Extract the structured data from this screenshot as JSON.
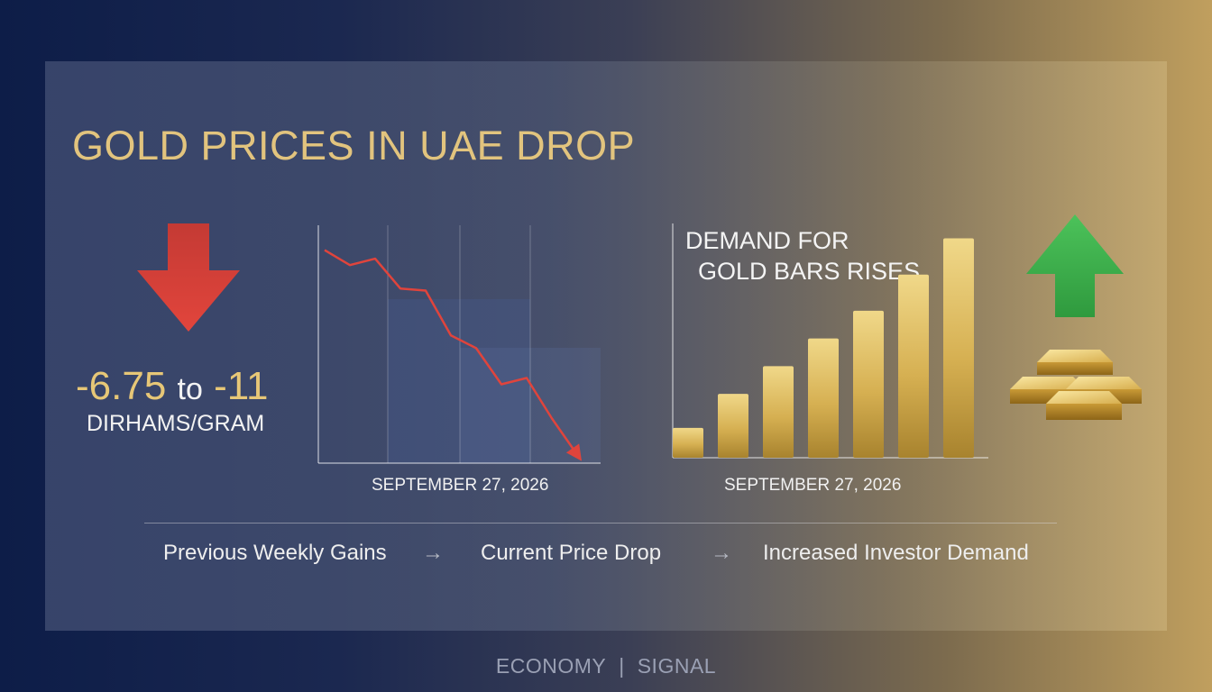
{
  "headline": "GOLD PRICES IN UAE DROP",
  "price_drop": {
    "from": "-6.75",
    "to_word": "to",
    "to": "-11",
    "unit": "DIRHAMS/GRAM"
  },
  "demand_title": {
    "line1": "DEMAND FOR",
    "line2": "GOLD BARS RISES"
  },
  "icons": {
    "down": "arrow-down-icon",
    "up": "arrow-up-icon",
    "gold": "gold-bars-icon",
    "flow": "arrow-right-icon"
  },
  "colors": {
    "accent_gold": "#e2c47e",
    "drop_red": "#e0443c",
    "rise_green": "#3fb34f"
  },
  "chart_data": [
    {
      "type": "line",
      "xlabel": "SEPTEMBER 27, 2026",
      "ylabel": "",
      "trend": "decreasing",
      "x": [
        0,
        1,
        2,
        3,
        4,
        5,
        6,
        7,
        8,
        9,
        10
      ],
      "values": [
        100,
        93,
        96,
        82,
        81,
        60,
        54,
        37,
        40,
        21,
        4
      ],
      "ylim": [
        0,
        110
      ],
      "grid": "vertical"
    },
    {
      "type": "bar",
      "xlabel": "SEPTEMBER 27, 2026",
      "ylabel": "",
      "trend": "increasing",
      "values": [
        14,
        30,
        43,
        56,
        69,
        86,
        103
      ],
      "ylim": [
        0,
        110
      ]
    }
  ],
  "flow": {
    "step1": "Previous Weekly Gains",
    "step2": "Current Price Drop",
    "step3": "Increased Investor Demand",
    "arrow": "→"
  },
  "footer": {
    "left": "ECONOMY",
    "sep": "|",
    "right": "SIGNAL"
  }
}
